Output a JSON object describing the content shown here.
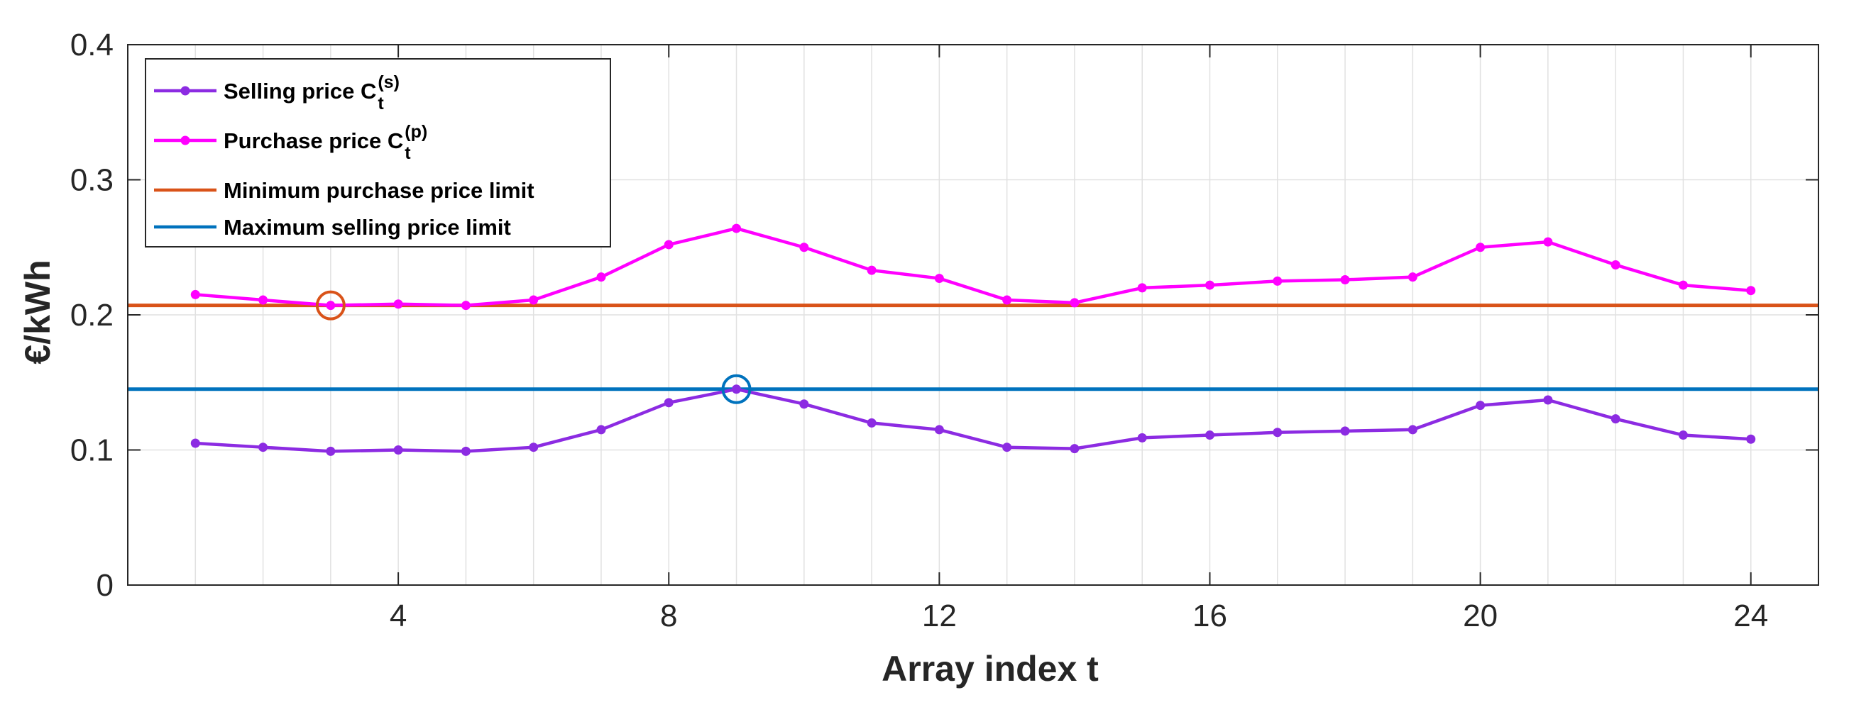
{
  "chart_data": {
    "type": "line",
    "xlabel": "Array index t",
    "ylabel": "€/kWh",
    "xlim": [
      0,
      25
    ],
    "ylim": [
      0,
      0.4
    ],
    "xticks": [
      4,
      8,
      12,
      16,
      20,
      24
    ],
    "yticks": [
      0,
      0.1,
      0.2,
      0.3,
      0.4
    ],
    "xtick_labels": [
      "4",
      "8",
      "12",
      "16",
      "20",
      "24"
    ],
    "ytick_labels": [
      "0",
      "0.1",
      "0.2",
      "0.3",
      "0.4"
    ],
    "grid": true,
    "legend_position": "top-left",
    "x": [
      1,
      2,
      3,
      4,
      5,
      6,
      7,
      8,
      9,
      10,
      11,
      12,
      13,
      14,
      15,
      16,
      17,
      18,
      19,
      20,
      21,
      22,
      23,
      24
    ],
    "series": [
      {
        "name": "Selling price C",
        "name_subscript": "t",
        "name_superscript": "(s)",
        "color": "#8C2BE2",
        "values": [
          0.105,
          0.102,
          0.099,
          0.1,
          0.099,
          0.102,
          0.115,
          0.135,
          0.145,
          0.134,
          0.12,
          0.115,
          0.102,
          0.101,
          0.109,
          0.111,
          0.113,
          0.114,
          0.115,
          0.133,
          0.137,
          0.123,
          0.111,
          0.108
        ]
      },
      {
        "name": "Purchase price C",
        "name_subscript": "t",
        "name_superscript": "(p)",
        "color": "#FF00FF",
        "values": [
          0.215,
          0.211,
          0.207,
          0.208,
          0.207,
          0.211,
          0.228,
          0.252,
          0.264,
          0.25,
          0.233,
          0.227,
          0.211,
          0.209,
          0.22,
          0.222,
          0.225,
          0.226,
          0.228,
          0.25,
          0.254,
          0.237,
          0.222,
          0.218
        ]
      }
    ],
    "reference_lines": [
      {
        "name": "Minimum purchase price limit",
        "y": 0.207,
        "color": "#D95319"
      },
      {
        "name": "Maximum selling price limit",
        "y": 0.145,
        "color": "#0072BD"
      }
    ],
    "markers": [
      {
        "type": "circle",
        "x": 3,
        "y": 0.207,
        "color": "#D95319"
      },
      {
        "type": "circle",
        "x": 9,
        "y": 0.145,
        "color": "#0072BD"
      }
    ]
  }
}
